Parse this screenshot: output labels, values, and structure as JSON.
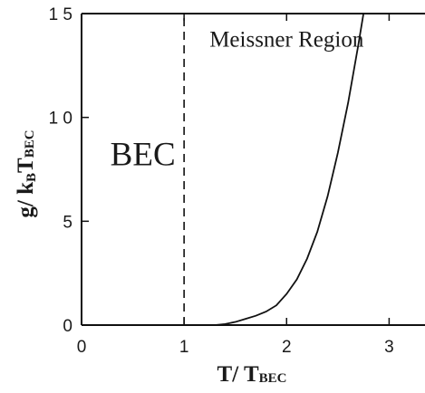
{
  "chart_data": {
    "type": "line",
    "title": "",
    "xlabel": {
      "main": "T/ T",
      "sub": "BEC"
    },
    "ylabel": {
      "main": "g/ k",
      "sub_b": "B",
      "main2": "T",
      "sub_bec": "BEC"
    },
    "xlim": [
      0,
      3.35
    ],
    "ylim": [
      0,
      15
    ],
    "x_ticks": [
      0,
      1,
      2,
      3
    ],
    "x_tick_labels": [
      "0",
      "1",
      "2",
      "3"
    ],
    "y_ticks": [
      0,
      5,
      10,
      15
    ],
    "y_tick_labels": [
      "0",
      "5",
      "1 0",
      "1 5"
    ],
    "grid": false,
    "series": [
      {
        "style": "solid",
        "x": [
          0,
          0.5,
          1.0,
          1.3,
          1.4,
          1.5,
          1.6,
          1.7,
          1.8,
          1.9,
          2.0,
          2.1,
          2.2,
          2.3,
          2.4,
          2.5,
          2.6,
          2.7,
          2.75
        ],
        "y": [
          0,
          0,
          0,
          0,
          0.05,
          0.15,
          0.3,
          0.45,
          0.65,
          0.95,
          1.5,
          2.2,
          3.2,
          4.5,
          6.2,
          8.3,
          10.7,
          13.5,
          15
        ]
      },
      {
        "style": "dashed",
        "x": [
          1.0,
          1.0
        ],
        "y": [
          0,
          15
        ]
      }
    ],
    "annotations": [
      {
        "text": "Meissner Region",
        "x": 2.0,
        "y": 13.4
      },
      {
        "text": "BEC",
        "x": 0.28,
        "y": 7.7
      }
    ]
  }
}
